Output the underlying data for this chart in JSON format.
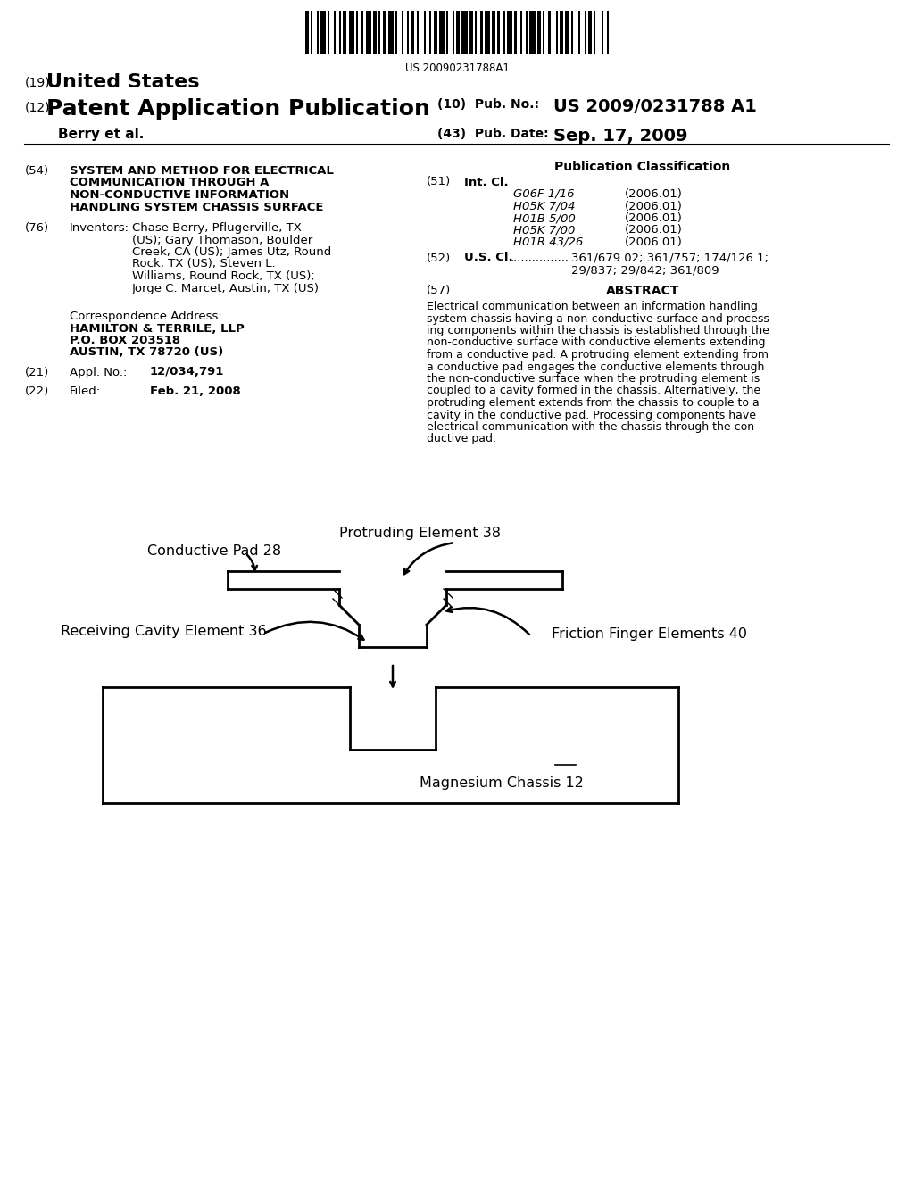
{
  "bg_color": "#ffffff",
  "barcode_text": "US 20090231788A1",
  "header": {
    "country": "United States",
    "country_num": "(19)",
    "type": "Patent Application Publication",
    "type_num": "(12)",
    "authors": "Berry et al.",
    "pub_no_label": "(10)  Pub. No.:",
    "pub_no_value": "US 2009/0231788 A1",
    "pub_date_label": "(43)  Pub. Date:",
    "pub_date_value": "Sep. 17, 2009"
  },
  "left_col": {
    "title_num": "(54)",
    "title_lines": [
      "SYSTEM AND METHOD FOR ELECTRICAL",
      "COMMUNICATION THROUGH A",
      "NON-CONDUCTIVE INFORMATION",
      "HANDLING SYSTEM CHASSIS SURFACE"
    ],
    "inventors_num": "(76)",
    "inventors_label": "Inventors:",
    "inventors_lines": [
      "Chase Berry, Pflugerville, TX",
      "(US); Gary Thomason, Boulder",
      "Creek, CA (US); James Utz, Round",
      "Rock, TX (US); Steven L.",
      "Williams, Round Rock, TX (US);",
      "Jorge C. Marcet, Austin, TX (US)"
    ],
    "corr_label": "Correspondence Address:",
    "corr_name": "HAMILTON & TERRILE, LLP",
    "corr_box": "P.O. BOX 203518",
    "corr_city": "AUSTIN, TX 78720 (US)",
    "appl_num": "(21)",
    "appl_label": "Appl. No.:",
    "appl_value": "12/034,791",
    "filed_num": "(22)",
    "filed_label": "Filed:",
    "filed_value": "Feb. 21, 2008"
  },
  "right_col": {
    "pub_class_title": "Publication Classification",
    "int_cl_num": "(51)",
    "int_cl_label": "Int. Cl.",
    "int_cl_entries": [
      [
        "G06F 1/16",
        "(2006.01)"
      ],
      [
        "H05K 7/04",
        "(2006.01)"
      ],
      [
        "H01B 5/00",
        "(2006.01)"
      ],
      [
        "H05K 7/00",
        "(2006.01)"
      ],
      [
        "H01R 43/26",
        "(2006.01)"
      ]
    ],
    "us_cl_num": "(52)",
    "us_cl_label": "U.S. Cl.",
    "us_cl_dots": "................",
    "us_cl_value1": "361/679.02; 361/757; 174/126.1;",
    "us_cl_value2": "29/837; 29/842; 361/809",
    "abstract_num": "(57)",
    "abstract_title": "ABSTRACT",
    "abstract_lines": [
      "Electrical communication between an information handling",
      "system chassis having a non-conductive surface and process-",
      "ing components within the chassis is established through the",
      "non-conductive surface with conductive elements extending",
      "from a conductive pad. A protruding element extending from",
      "a conductive pad engages the conductive elements through",
      "the non-conductive surface when the protruding element is",
      "coupled to a cavity formed in the chassis. Alternatively, the",
      "protruding element extends from the chassis to couple to a",
      "cavity in the conductive pad. Processing components have",
      "electrical communication with the chassis through the con-",
      "ductive pad."
    ]
  },
  "diagram": {
    "label_conductive_pad": "Conductive Pad 28",
    "label_protruding": "Protruding Element 38",
    "label_receiving": "Receiving Cavity Element 36",
    "label_friction": "Friction Finger Elements 40",
    "label_chassis": "Magnesium Chassis 12"
  }
}
